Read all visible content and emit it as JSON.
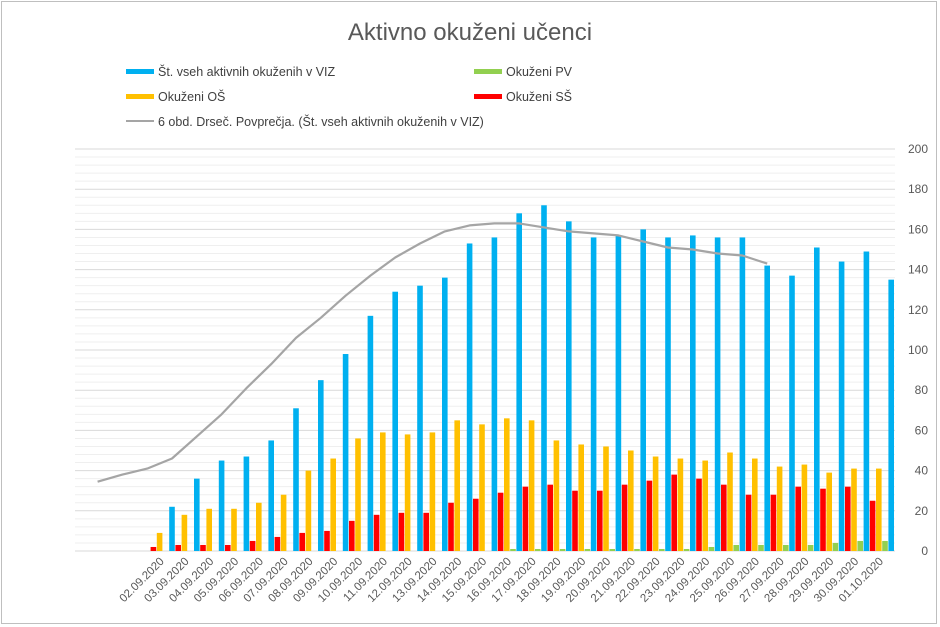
{
  "chart_data": {
    "type": "bar",
    "title": "Aktivno okuženi učenci",
    "xlabel": "",
    "ylabel": "",
    "ylim": [
      0,
      200
    ],
    "y_ticks": [
      0,
      20,
      40,
      60,
      80,
      100,
      120,
      140,
      160,
      180,
      200
    ],
    "y_axis_side": "right",
    "grid": true,
    "legend_position": "top",
    "categories": [
      "02.09.2020",
      "03.09.2020",
      "04.09.2020",
      "05.09.2020",
      "06.09.2020",
      "07.09.2020",
      "08.09.2020",
      "09.09.2020",
      "10.09.2020",
      "11.09.2020",
      "12.09.2020",
      "13.09.2020",
      "14.09.2020",
      "15.09.2020",
      "16.09.2020",
      "17.09.2020",
      "18.09.2020",
      "19.09.2020",
      "20.09.2020",
      "21.09.2020",
      "22.09.2020",
      "23.09.2020",
      "24.09.2020",
      "25.09.2020",
      "26.09.2020",
      "27.09.2020",
      "28.09.2020",
      "29.09.2020",
      "30.09.2020",
      "01.10.2020"
    ],
    "series": [
      {
        "name": "Št. vseh aktivnih okuženih v VIZ",
        "type": "bar",
        "color": "#00B0F0",
        "values": [
          22,
          36,
          45,
          47,
          55,
          71,
          85,
          98,
          117,
          129,
          132,
          136,
          153,
          156,
          168,
          172,
          164,
          156,
          157,
          160,
          156,
          157,
          156,
          156,
          142,
          137,
          151,
          144,
          149,
          135
        ]
      },
      {
        "name": "Okuženi PV",
        "type": "bar",
        "color": "#92D050",
        "values": [
          0,
          0,
          0,
          0,
          0,
          0,
          0,
          0,
          0,
          0,
          0,
          0,
          0,
          0,
          1,
          1,
          1,
          1,
          1,
          1,
          1,
          1,
          2,
          3,
          3,
          3,
          3,
          4,
          5,
          5
        ]
      },
      {
        "name": "Okuženi OŠ",
        "type": "bar",
        "color": "#FFC000",
        "values": [
          9,
          18,
          21,
          21,
          24,
          28,
          40,
          46,
          56,
          59,
          58,
          59,
          65,
          63,
          66,
          65,
          55,
          53,
          52,
          50,
          47,
          46,
          45,
          49,
          46,
          42,
          43,
          39,
          41,
          41
        ]
      },
      {
        "name": "Okuženi SŠ",
        "type": "bar",
        "color": "#FF0000",
        "values": [
          2,
          3,
          3,
          3,
          5,
          7,
          9,
          10,
          15,
          18,
          19,
          19,
          24,
          26,
          29,
          32,
          33,
          30,
          30,
          33,
          35,
          38,
          36,
          33,
          28,
          28,
          32,
          31,
          32,
          25
        ]
      },
      {
        "name": "6 obd. Drseč. Povprečja. (Št. vseh aktivnih okuženih v VIZ)",
        "type": "line",
        "color": "#A5A5A5",
        "x": [
          "30.08.2020",
          "31.08.2020",
          "01.09.2020",
          "02.09.2020",
          "03.09.2020",
          "04.09.2020",
          "05.09.2020",
          "06.09.2020",
          "07.09.2020",
          "08.09.2020",
          "09.09.2020",
          "10.09.2020",
          "11.09.2020",
          "12.09.2020",
          "13.09.2020",
          "14.09.2020",
          "15.09.2020",
          "16.09.2020",
          "17.09.2020",
          "18.09.2020",
          "19.09.2020",
          "20.09.2020",
          "21.09.2020",
          "22.09.2020",
          "23.09.2020",
          "24.09.2020",
          "25.09.2020",
          "26.09.2020"
        ],
        "values": [
          34.5,
          38,
          41,
          46,
          57,
          68,
          81,
          93,
          106,
          116,
          127,
          137,
          146,
          153,
          159,
          162,
          163,
          163,
          161,
          159,
          158,
          157,
          154,
          151,
          150,
          148,
          147,
          143
        ]
      }
    ]
  }
}
